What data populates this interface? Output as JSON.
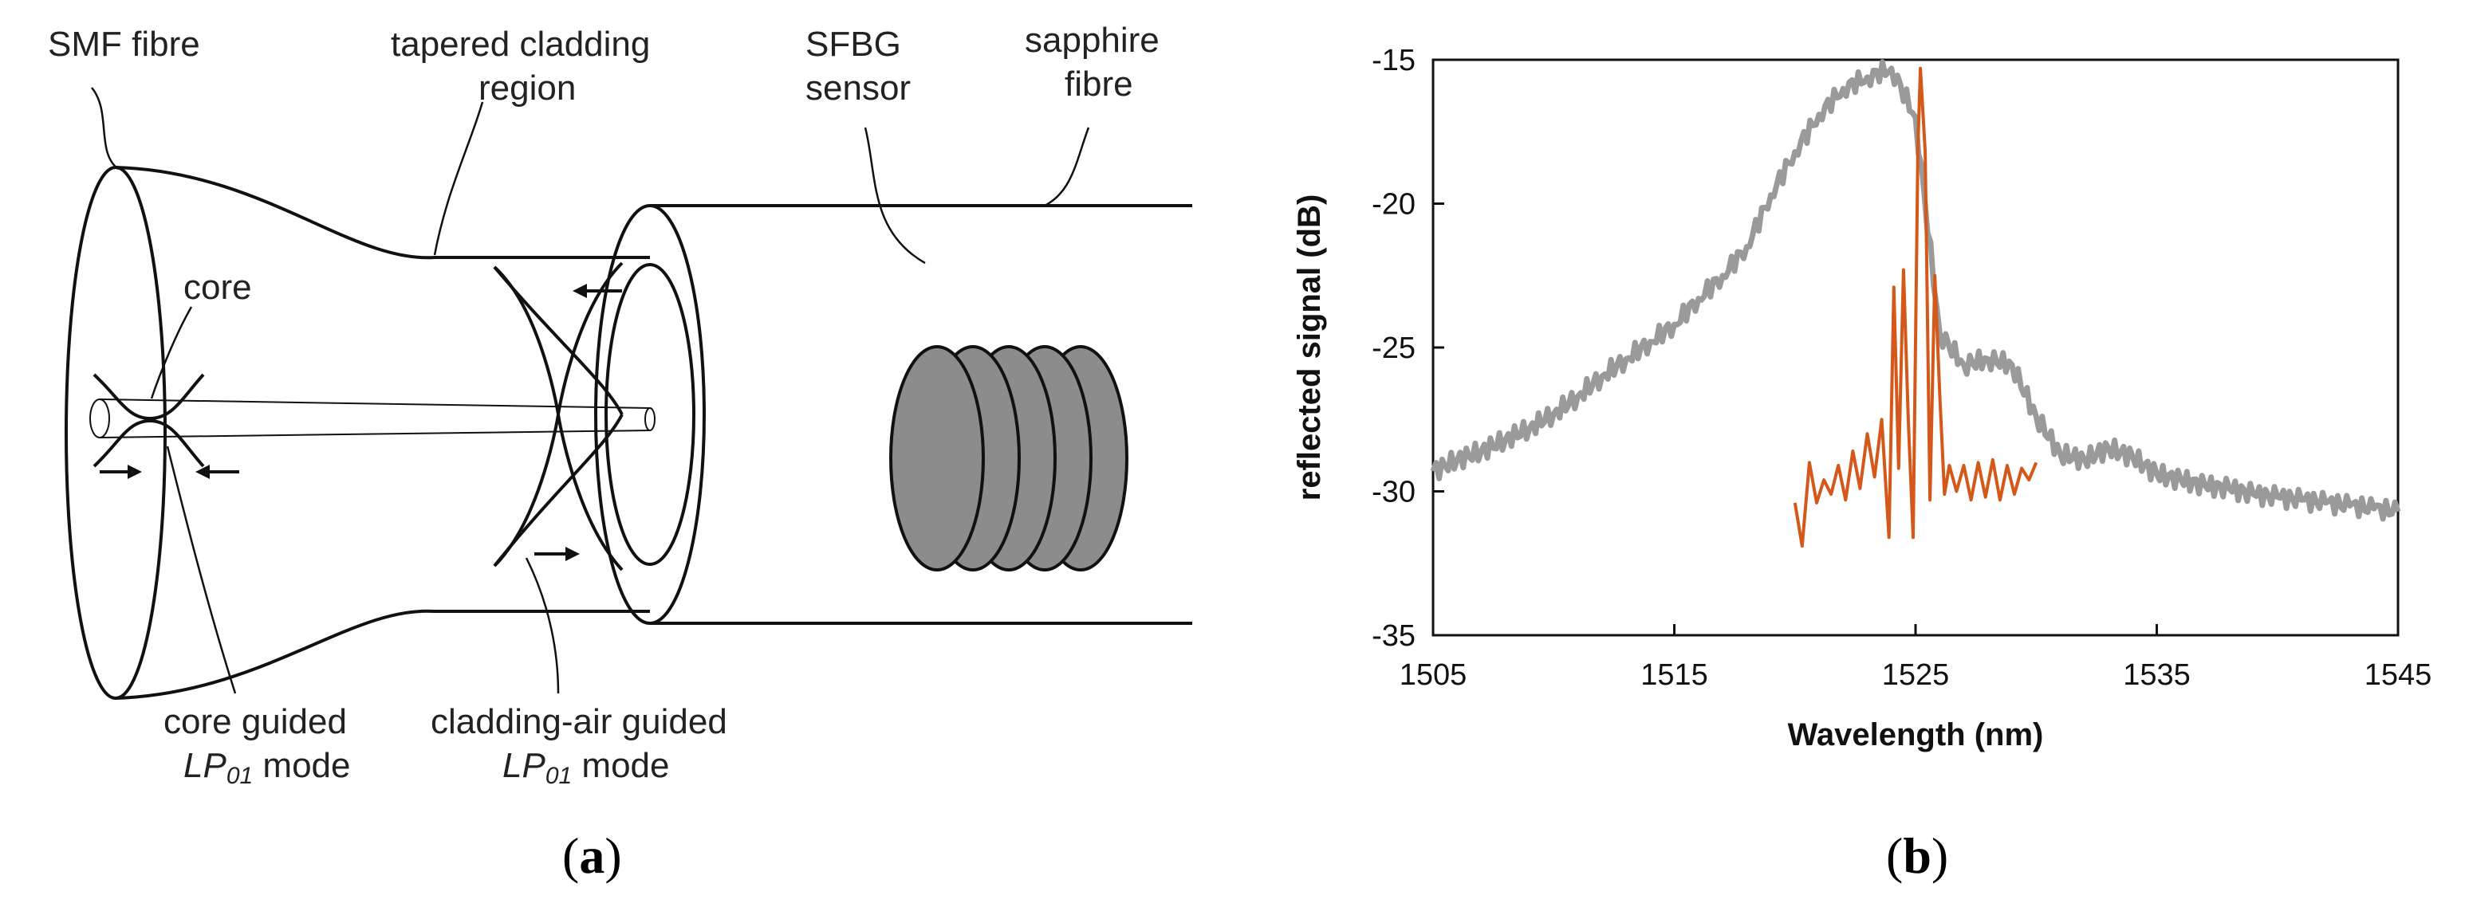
{
  "panel_a": {
    "caption_open": "(",
    "caption_letter": "a",
    "caption_close": ")",
    "labels": {
      "smf_fibre": "SMF fibre",
      "tapered_line1": "tapered cladding",
      "tapered_line2": "region",
      "sfbg_line1": "SFBG",
      "sfbg_line2": "sensor",
      "sapphire_line1": "sapphire",
      "sapphire_line2": "fibre",
      "core": "core",
      "core_guided_line1": "core guided",
      "core_guided_mode_lp": "LP",
      "core_guided_mode_sub": "01",
      "core_guided_mode_word": " mode",
      "cladding_line1": "cladding-air guided",
      "cladding_mode_lp": "LP",
      "cladding_mode_sub": "01",
      "cladding_mode_word": " mode"
    },
    "colors": {
      "grating_fill": "#8c8c8c",
      "stroke": "#111111"
    }
  },
  "panel_b": {
    "caption_open": "(",
    "caption_letter": "b",
    "caption_close": ")"
  },
  "chart_data": {
    "type": "line",
    "title": "",
    "xlabel": "Wavelength (nm)",
    "ylabel": "reflected signal (dB)",
    "xlim": [
      1505,
      1545
    ],
    "ylim": [
      -35,
      -15
    ],
    "xticks": [
      1505,
      1515,
      1525,
      1535,
      1545
    ],
    "yticks": [
      -15,
      -20,
      -25,
      -30,
      -35
    ],
    "grid": false,
    "legend": "none",
    "series": [
      {
        "color": "#9a9a9a",
        "x": [
          1505,
          1506,
          1507,
          1508,
          1509,
          1510,
          1511,
          1512,
          1513,
          1514,
          1515,
          1516,
          1517,
          1518,
          1519,
          1520,
          1521,
          1522,
          1523,
          1524,
          1525,
          1526,
          1527,
          1528,
          1529,
          1530,
          1531,
          1532,
          1533,
          1534,
          1535,
          1536,
          1537,
          1538,
          1539,
          1540,
          1541,
          1542,
          1543,
          1544,
          1545
        ],
        "y": [
          -29.3,
          -28.9,
          -28.6,
          -28.2,
          -27.8,
          -27.3,
          -26.7,
          -26.0,
          -25.4,
          -24.8,
          -24.2,
          -23.3,
          -22.5,
          -21.5,
          -19.7,
          -18.2,
          -16.9,
          -16.0,
          -15.6,
          -15.3,
          -17.0,
          -24.5,
          -25.6,
          -25.4,
          -25.6,
          -27.4,
          -28.7,
          -28.9,
          -28.5,
          -28.8,
          -29.4,
          -29.6,
          -29.8,
          -29.9,
          -30.1,
          -30.2,
          -30.3,
          -30.4,
          -30.5,
          -30.6,
          -30.7
        ]
      },
      {
        "color": "#d4581a",
        "x": [
          1520.0,
          1520.3,
          1520.6,
          1520.9,
          1521.2,
          1521.5,
          1521.8,
          1522.1,
          1522.4,
          1522.7,
          1523.0,
          1523.3,
          1523.6,
          1523.9,
          1524.1,
          1524.3,
          1524.5,
          1524.7,
          1524.9,
          1525.1,
          1525.2,
          1525.4,
          1525.6,
          1525.8,
          1526.0,
          1526.2,
          1526.4,
          1526.7,
          1527.0,
          1527.3,
          1527.6,
          1527.9,
          1528.2,
          1528.5,
          1528.8,
          1529.1,
          1529.4,
          1529.7,
          1530.0
        ],
        "y": [
          -30.4,
          -31.9,
          -29.0,
          -30.4,
          -29.6,
          -30.1,
          -29.1,
          -30.3,
          -28.6,
          -29.9,
          -28.0,
          -29.5,
          -27.5,
          -31.6,
          -22.9,
          -29.2,
          -22.3,
          -27.5,
          -31.6,
          -18.0,
          -15.3,
          -18.2,
          -30.3,
          -22.5,
          -26.6,
          -30.1,
          -29.1,
          -30.0,
          -29.1,
          -30.3,
          -29.0,
          -30.2,
          -28.9,
          -30.3,
          -29.1,
          -30.1,
          -29.2,
          -29.6,
          -29.0
        ]
      }
    ]
  }
}
